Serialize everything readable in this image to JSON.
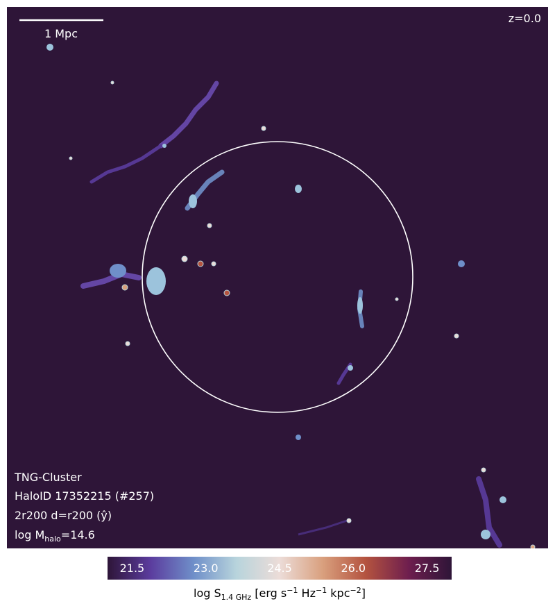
{
  "chart_data": {
    "type": "image",
    "scalebar_label": "1 Mpc",
    "redshift_label": "z=0.0",
    "info_lines": [
      "TNG-Cluster",
      "HaloID 17352215 (#257)",
      "2r200 d=r200 (ŷ)"
    ],
    "mass_label": {
      "main": "log M",
      "sub": "halo",
      "tail": "=14.6"
    },
    "background_color": "#2e1538",
    "circle_color": "#ffffff",
    "colorbar": {
      "clim": [
        21,
        28
      ],
      "ticks": [
        21.5,
        {
          "value": 23,
          "label": "23.0"
        },
        24.5,
        {
          "value": 26,
          "label": "26.0"
        },
        27.5
      ],
      "colormap": [
        "#2e1538",
        "#5b3c9e",
        "#6f8fc9",
        "#b8d4dc",
        "#ecdcd8",
        "#d9a07e",
        "#b4533f",
        "#6e1e4e",
        "#2e1538"
      ],
      "label_parts": [
        {
          "text": "log S"
        },
        {
          "sub": "1.4 GHz"
        },
        {
          "text": " [erg s"
        },
        {
          "sup": "−1"
        },
        {
          "text": " Hz"
        },
        {
          "sup": "−1"
        },
        {
          "text": " kpc"
        },
        {
          "sup": "−2"
        },
        {
          "text": "]"
        }
      ]
    }
  }
}
